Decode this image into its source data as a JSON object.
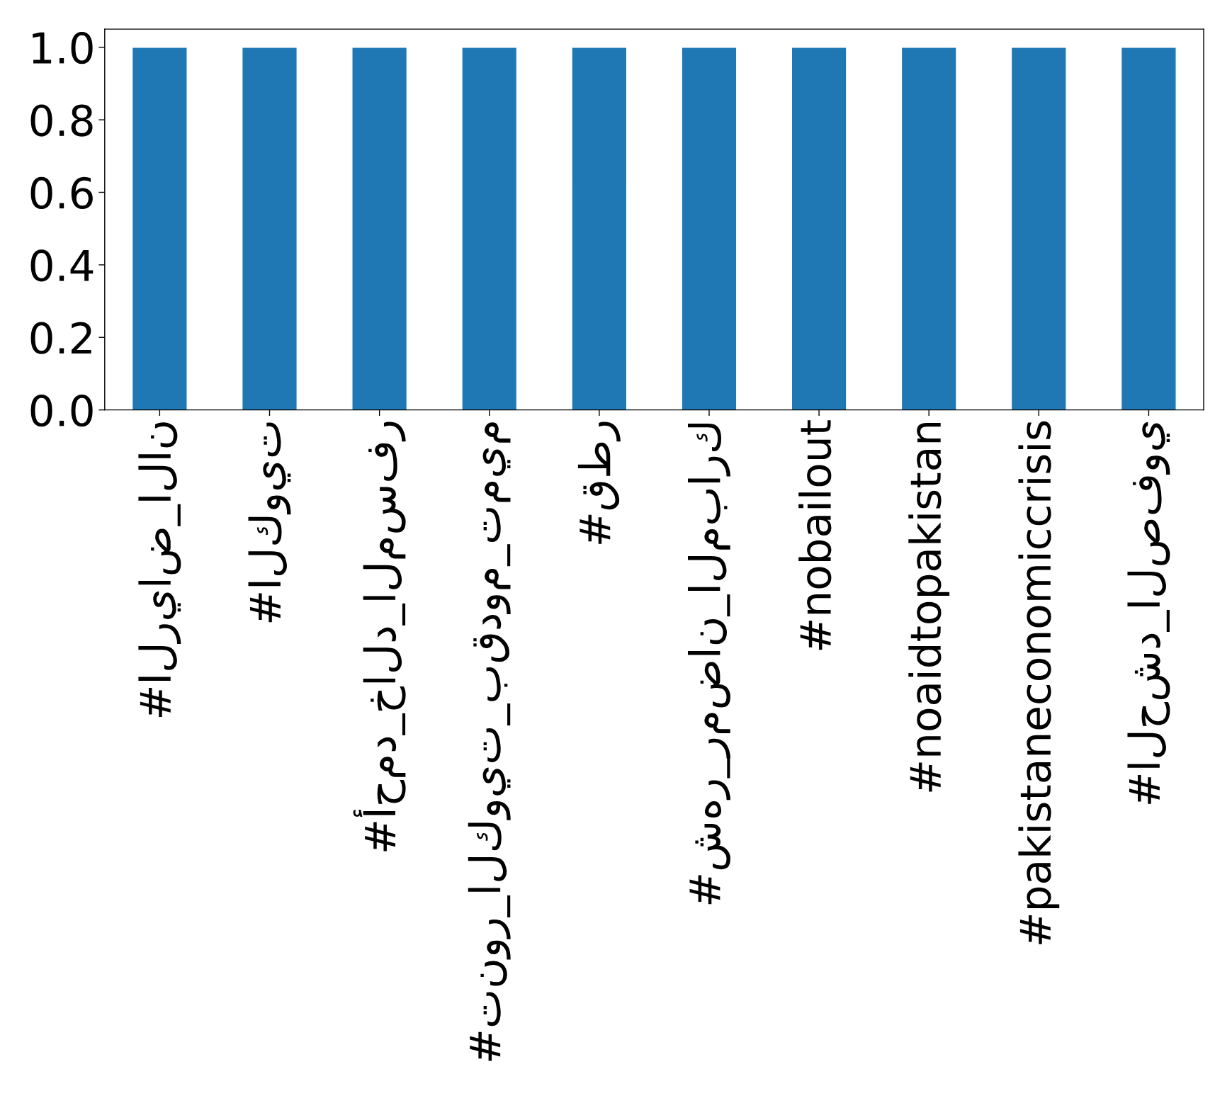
{
  "chart_data": {
    "type": "bar",
    "categories": [
      "#الرياض_الان",
      "#الكويت",
      "#أحمد_خالد_المسفر",
      "#تنور_الكويت_بقدوم_تميم",
      "#قطر",
      "#شهر_رمضان_المبارك",
      "#nobailout",
      "#noaidtopakistan",
      "#pakistaneconomiccrisis",
      "#الحشد_الصفوي"
    ],
    "values": [
      1,
      1,
      1,
      1,
      1,
      1,
      1,
      1,
      1,
      1
    ],
    "color": "#1f77b4",
    "ylim": [
      0,
      1.05
    ],
    "yticks": [
      {
        "value": 0,
        "label": "0.0"
      },
      {
        "value": 0.2,
        "label": "0.2"
      },
      {
        "value": 0.4,
        "label": "0.4"
      },
      {
        "value": 0.6,
        "label": "0.6"
      },
      {
        "value": 0.8,
        "label": "0.8"
      },
      {
        "value": 1.0,
        "label": "1.0"
      }
    ],
    "grid": false
  }
}
